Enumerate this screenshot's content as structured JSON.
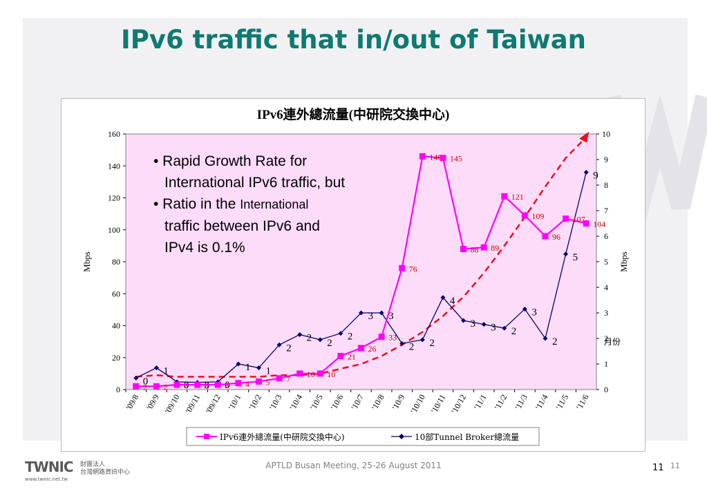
{
  "slide": {
    "title": "IPv6 traffic that in/out of Taiwan",
    "footer": "APTLD Busan Meeting, 25-26 August 2011",
    "page_number": "11",
    "page_number_small": "11",
    "logo_text": "TWNIC",
    "logo_url": "www.twnic.net.tw",
    "logo_org_line1": "財團法人",
    "logo_org_line2": "台灣網路資訊中心"
  },
  "bullets": [
    {
      "line1": "• Rapid Growth Rate for",
      "line2": "International IPv6 traffic, but"
    },
    {
      "line1a": "• Ratio in the ",
      "line1b": "International",
      "line2": "traffic between IPv6 and",
      "line3": "IPv4 is 0.1%"
    }
  ],
  "colors": {
    "title": "#0e7a72",
    "plot_bg": "#fddcfa",
    "series1": "#ff00ff",
    "series2": "#00006a",
    "trend": "#e8101a",
    "label_red": "#cc0000"
  },
  "chart_data": {
    "type": "line",
    "title": "IPv6連外總流量(中研院交換中心)",
    "categories": [
      "'09/8",
      "'09/9",
      "'09/10",
      "'09/11",
      "'09/12",
      "'10/1",
      "'10/2",
      "'10/3",
      "'10/4",
      "'10/5",
      "'10/6",
      "'10/7",
      "'10/8",
      "'10/9",
      "'10/10",
      "'10/11",
      "'10/12",
      "'11/1",
      "'11/2",
      "'11/3",
      "'11/4",
      "'11/5",
      "'11/6"
    ],
    "ylabel_left": "Mbps",
    "ylabel_right": "Mbps",
    "right_annotation": "月份",
    "ylim_left": [
      0,
      160
    ],
    "ylim_right": [
      0,
      10
    ],
    "yticks_left": [
      "0",
      "20",
      "40",
      "60",
      "80",
      "100",
      "120",
      "140",
      "160"
    ],
    "yticks_right": [
      "0",
      "1",
      "2",
      "3",
      "4",
      "5",
      "6",
      "7",
      "8",
      "9",
      "10"
    ],
    "series": [
      {
        "name": "IPv6連外總流量(中研院交換中心)",
        "axis": "left",
        "marker": "square",
        "values": [
          2,
          2,
          3,
          3,
          3,
          4,
          5,
          7,
          10,
          10,
          21,
          26,
          33,
          76,
          146,
          145,
          88,
          89,
          121,
          109,
          96,
          107,
          104
        ],
        "labels": [
          "2",
          "2",
          "3",
          "3",
          "3",
          "4",
          "5",
          "7",
          "10",
          "10",
          "21",
          "26",
          "33",
          "76",
          "146",
          "145",
          "88",
          "89",
          "121",
          "109",
          "96",
          "107",
          "104"
        ]
      },
      {
        "name": "10部Tunnel Broker總流量",
        "axis": "right",
        "marker": "diamond",
        "values": [
          0.45,
          0.85,
          0.3,
          0.28,
          0.3,
          1.0,
          0.85,
          1.75,
          2.15,
          1.95,
          2.2,
          3.0,
          3.0,
          1.8,
          1.95,
          3.6,
          2.7,
          2.55,
          2.4,
          3.15,
          2.0,
          5.3,
          8.5
        ],
        "labels": [
          "0",
          "1",
          "0",
          "0",
          "0",
          "1",
          "1",
          "2",
          "2",
          "2",
          "2",
          "3",
          "3",
          "2",
          "2",
          "4",
          "3",
          "3",
          "2",
          "3",
          "2",
          "5",
          "9"
        ]
      }
    ],
    "trend_line": {
      "axis": "left",
      "values": [
        8,
        9,
        8,
        8,
        8,
        8,
        8,
        9,
        9,
        10,
        13,
        16,
        21,
        28,
        36,
        46,
        58,
        73,
        90,
        108,
        127,
        145,
        158
      ]
    },
    "legend": {
      "position": "bottom",
      "entries": [
        "IPv6連外總流量(中研院交換中心)",
        "10部Tunnel Broker總流量"
      ]
    }
  }
}
